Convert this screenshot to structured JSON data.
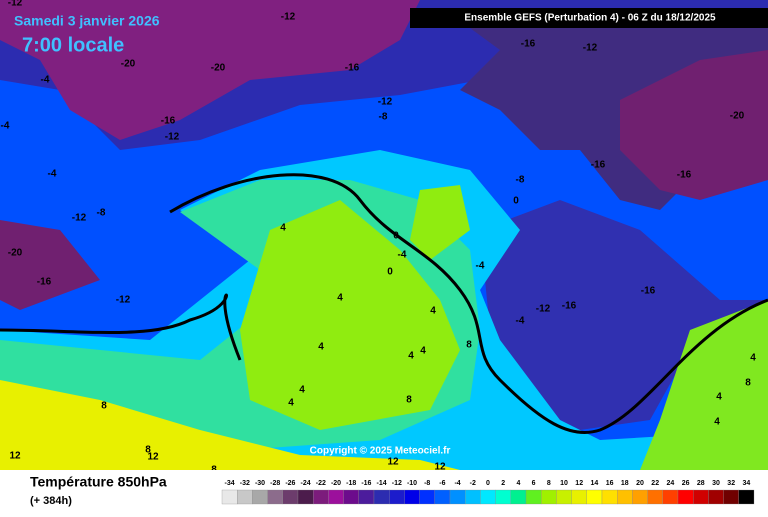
{
  "header": {
    "date": "Samedi 3 janvier 2026",
    "time": "7:00 locale",
    "model": "Ensemble GEFS  (Perturbation 4)  -  06 Z du 18/12/2025"
  },
  "map": {
    "contour_labels": [
      -12,
      -12,
      -16,
      -12,
      -20,
      -20,
      -16,
      -4,
      -12,
      -8,
      -20,
      -4,
      -16,
      -12,
      -4,
      -16,
      -16,
      -8,
      0,
      -12,
      -8,
      4,
      0,
      -20,
      -4,
      0,
      -4,
      -16,
      -12,
      4,
      -12,
      -16,
      -16,
      -4,
      4,
      4,
      4,
      4,
      8,
      4,
      8,
      4,
      4,
      8,
      8,
      4,
      4,
      8,
      12,
      12,
      12,
      12,
      8
    ],
    "copyright": "Copyright © 2025 Meteociel.fr"
  },
  "footer": {
    "variable": "Température 850hPa",
    "lead": "(+ 384h)"
  },
  "legend": {
    "values": [
      -34,
      -32,
      -30,
      -28,
      -26,
      -24,
      -22,
      -20,
      -18,
      -16,
      -14,
      -12,
      -10,
      -8,
      -6,
      -4,
      -2,
      0,
      2,
      4,
      6,
      8,
      10,
      12,
      14,
      16,
      18,
      20,
      22,
      24,
      26,
      28,
      30,
      32,
      34
    ],
    "colors": [
      "#e8e8e8",
      "#c8c8c8",
      "#a8a8a8",
      "#8c6c8c",
      "#6c3c6c",
      "#4c1c4c",
      "#7c1c7c",
      "#9c109c",
      "#6c0c8c",
      "#4c1c9c",
      "#2c2cb0",
      "#1c1ccc",
      "#0000e8",
      "#0030ff",
      "#0060ff",
      "#0090ff",
      "#00c0ff",
      "#00e8ff",
      "#00ffd0",
      "#00f090",
      "#60f020",
      "#a0f000",
      "#c8f000",
      "#e8f000",
      "#ffff00",
      "#ffe000",
      "#ffc000",
      "#ffa000",
      "#ff7000",
      "#ff4000",
      "#ff0000",
      "#d00000",
      "#a00000",
      "#700000",
      "#000000"
    ]
  }
}
